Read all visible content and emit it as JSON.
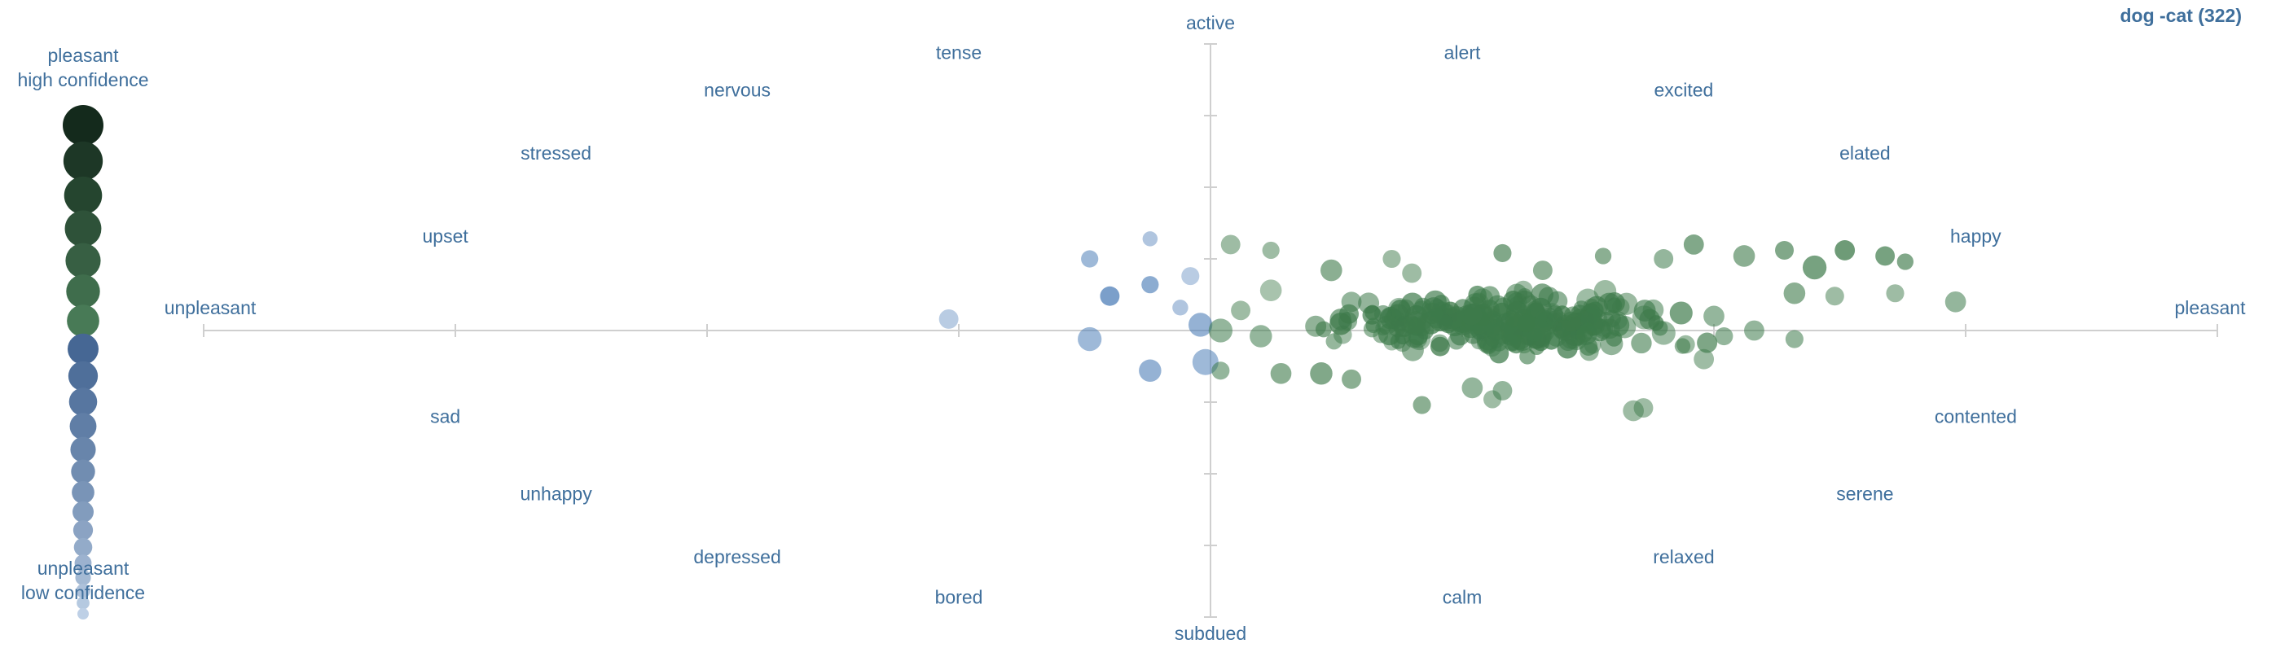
{
  "chart_data": {
    "type": "scatter",
    "title": "dog -cat (322)",
    "axes": {
      "x_range": [
        -1,
        1
      ],
      "y_range": [
        -1,
        1
      ],
      "grid": false
    },
    "axis_labels": {
      "top": "active",
      "bottom": "subdued",
      "left": "unpleasant",
      "right": "pleasant"
    },
    "emotion_labels": [
      {
        "text": "tense",
        "x": -0.25,
        "y": 0.97
      },
      {
        "text": "alert",
        "x": 0.25,
        "y": 0.97
      },
      {
        "text": "nervous",
        "x": -0.47,
        "y": 0.84
      },
      {
        "text": "excited",
        "x": 0.47,
        "y": 0.84
      },
      {
        "text": "stressed",
        "x": -0.65,
        "y": 0.62
      },
      {
        "text": "elated",
        "x": 0.65,
        "y": 0.62
      },
      {
        "text": "upset",
        "x": -0.76,
        "y": 0.33
      },
      {
        "text": "happy",
        "x": 0.76,
        "y": 0.33
      },
      {
        "text": "sad",
        "x": -0.76,
        "y": -0.3
      },
      {
        "text": "contented",
        "x": 0.76,
        "y": -0.3
      },
      {
        "text": "unhappy",
        "x": -0.65,
        "y": -0.57
      },
      {
        "text": "serene",
        "x": 0.65,
        "y": -0.57
      },
      {
        "text": "depressed",
        "x": -0.47,
        "y": -0.79
      },
      {
        "text": "relaxed",
        "x": 0.47,
        "y": -0.79
      },
      {
        "text": "bored",
        "x": -0.25,
        "y": -0.93
      },
      {
        "text": "calm",
        "x": 0.25,
        "y": -0.93
      }
    ],
    "legend": {
      "placement": "left",
      "top_label_line1": "pleasant",
      "top_label_line2": "high confidence",
      "bottom_label_line1": "unpleasant",
      "bottom_label_line2": "low confidence"
    },
    "colors": {
      "pleasant": "#3d7a4a",
      "unpleasant": "#4f7fb8",
      "axis": "#cfcfcf",
      "label": "#3f6f9c"
    },
    "point_count": 322,
    "blue_points": [
      [
        -0.26,
        0.04,
        0.55,
        0.4
      ],
      [
        -0.12,
        0.25,
        0.4,
        0.55
      ],
      [
        -0.06,
        0.32,
        0.25,
        0.45
      ],
      [
        -0.1,
        0.12,
        0.55,
        0.75
      ],
      [
        -0.06,
        0.16,
        0.4,
        0.65
      ],
      [
        -0.03,
        0.08,
        0.3,
        0.45
      ],
      [
        -0.02,
        0.19,
        0.45,
        0.4
      ],
      [
        -0.01,
        0.02,
        0.85,
        0.6
      ],
      [
        -0.12,
        -0.03,
        0.85,
        0.55
      ],
      [
        -0.06,
        -0.14,
        0.75,
        0.6
      ],
      [
        -0.005,
        -0.11,
        1.0,
        0.55
      ]
    ],
    "green_points": [
      [
        0.02,
        0.3,
        0.55,
        0.5
      ],
      [
        0.06,
        0.28,
        0.4,
        0.5
      ],
      [
        0.12,
        0.21,
        0.7,
        0.6
      ],
      [
        0.18,
        0.25,
        0.45,
        0.5
      ],
      [
        0.2,
        0.2,
        0.55,
        0.5
      ],
      [
        0.29,
        0.27,
        0.45,
        0.65
      ],
      [
        0.33,
        0.21,
        0.55,
        0.6
      ],
      [
        0.39,
        0.26,
        0.35,
        0.6
      ],
      [
        0.45,
        0.25,
        0.55,
        0.55
      ],
      [
        0.48,
        0.3,
        0.6,
        0.65
      ],
      [
        0.53,
        0.26,
        0.7,
        0.6
      ],
      [
        0.57,
        0.28,
        0.5,
        0.65
      ],
      [
        0.6,
        0.22,
        0.85,
        0.7
      ],
      [
        0.63,
        0.28,
        0.6,
        0.75
      ],
      [
        0.67,
        0.26,
        0.55,
        0.7
      ],
      [
        0.69,
        0.24,
        0.35,
        0.65
      ],
      [
        0.5,
        0.05,
        0.65,
        0.55
      ],
      [
        0.54,
        0.0,
        0.6,
        0.55
      ],
      [
        0.58,
        -0.03,
        0.45,
        0.55
      ],
      [
        0.49,
        -0.1,
        0.6,
        0.5
      ],
      [
        0.51,
        -0.02,
        0.45,
        0.55
      ],
      [
        0.62,
        0.12,
        0.5,
        0.5
      ],
      [
        0.74,
        0.1,
        0.65,
        0.55
      ],
      [
        0.68,
        0.13,
        0.45,
        0.5
      ],
      [
        0.43,
        -0.27,
        0.55,
        0.5
      ],
      [
        0.07,
        -0.15,
        0.65,
        0.6
      ],
      [
        0.11,
        -0.15,
        0.75,
        0.65
      ],
      [
        0.14,
        -0.17,
        0.55,
        0.6
      ],
      [
        0.21,
        -0.26,
        0.45,
        0.6
      ],
      [
        0.28,
        -0.24,
        0.45,
        0.5
      ],
      [
        0.29,
        -0.21,
        0.55,
        0.55
      ],
      [
        0.26,
        -0.2,
        0.65,
        0.55
      ],
      [
        0.42,
        -0.28,
        0.65,
        0.5
      ],
      [
        0.06,
        0.14,
        0.7,
        0.45
      ],
      [
        0.14,
        0.1,
        0.6,
        0.55
      ],
      [
        0.03,
        0.07,
        0.55,
        0.5
      ],
      [
        0.01,
        0.0,
        0.85,
        0.55
      ],
      [
        0.01,
        -0.14,
        0.45,
        0.55
      ],
      [
        0.05,
        -0.02,
        0.75,
        0.55
      ],
      [
        0.58,
        0.13,
        0.7,
        0.6
      ]
    ]
  }
}
